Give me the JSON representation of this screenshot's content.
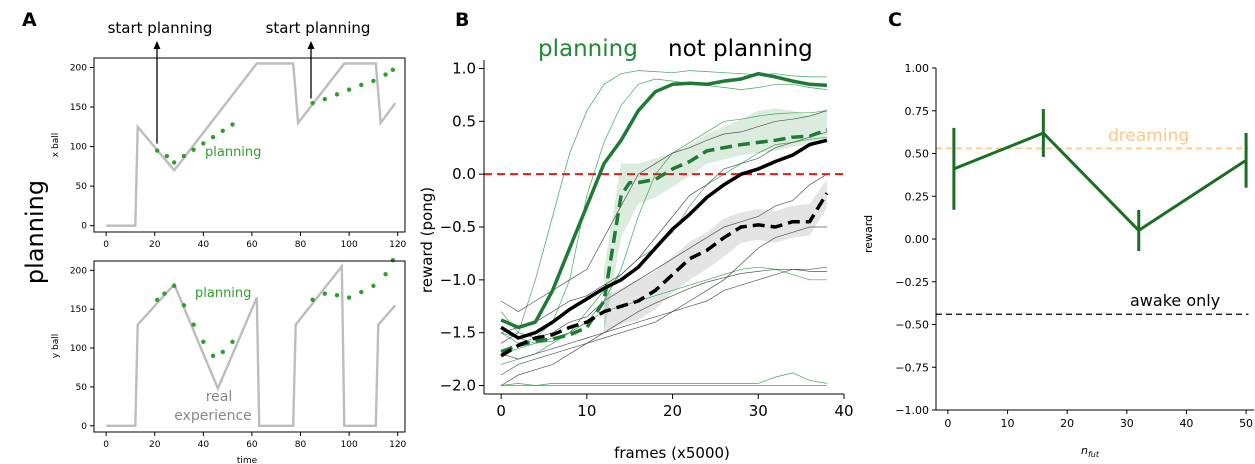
{
  "side_label": "planning",
  "chart_data": [
    {
      "id": "A-top",
      "panel_letter": "A",
      "type": "line",
      "ylabel": "x ball",
      "xlabel": "",
      "xlim": [
        -5,
        123
      ],
      "ylim": [
        -8,
        212
      ],
      "xticks": [
        0,
        20,
        40,
        60,
        80,
        100,
        120
      ],
      "yticks": [
        0,
        50,
        100,
        150,
        200
      ],
      "annotations": [
        "start planning",
        "start planning"
      ],
      "annotation_points": [
        [
          21,
          100
        ],
        [
          85,
          157
        ]
      ],
      "inline_label": "planning",
      "series": [
        {
          "name": "real",
          "color": "#bdbdbd",
          "x": [
            0,
            12,
            13,
            28,
            62,
            77,
            79,
            98,
            111,
            113,
            119
          ],
          "y": [
            0,
            0,
            125,
            70,
            205,
            205,
            130,
            205,
            205,
            130,
            155
          ]
        },
        {
          "name": "planning",
          "color": "#2ca02c",
          "x": [
            21,
            25,
            28,
            32,
            36,
            40,
            44,
            48,
            52
          ],
          "y": [
            95,
            88,
            80,
            88,
            96,
            104,
            112,
            120,
            128
          ]
        },
        {
          "name": "planning",
          "color": "#2ca02c",
          "x": [
            85,
            90,
            95,
            100,
            105,
            110,
            115,
            118
          ],
          "y": [
            155,
            160,
            166,
            172,
            178,
            183,
            191,
            197
          ]
        }
      ]
    },
    {
      "id": "A-bottom",
      "panel_letter": "",
      "type": "line",
      "ylabel": "y ball",
      "xlabel": "time",
      "xlim": [
        -5,
        123
      ],
      "ylim": [
        -8,
        212
      ],
      "xticks": [
        0,
        20,
        40,
        60,
        80,
        100,
        120
      ],
      "yticks": [
        0,
        50,
        100,
        150,
        200
      ],
      "inline_label": "planning",
      "inline_label2": [
        "real",
        "experience"
      ],
      "series": [
        {
          "name": "real",
          "color": "#bdbdbd",
          "x": [
            0,
            12,
            13,
            28,
            46,
            62,
            63,
            77,
            78,
            97,
            98,
            111,
            112,
            119
          ],
          "y": [
            0,
            0,
            130,
            182,
            48,
            165,
            0,
            0,
            130,
            205,
            0,
            0,
            130,
            155
          ]
        },
        {
          "name": "planning",
          "color": "#2ca02c",
          "x": [
            21,
            24,
            28,
            32,
            36,
            40,
            44,
            48,
            52
          ],
          "y": [
            162,
            170,
            180,
            155,
            130,
            108,
            90,
            95,
            108
          ]
        },
        {
          "name": "planning",
          "color": "#2ca02c",
          "x": [
            85,
            90,
            95,
            100,
            105,
            110,
            115,
            118
          ],
          "y": [
            162,
            170,
            168,
            165,
            172,
            180,
            195,
            213
          ]
        }
      ]
    },
    {
      "id": "B",
      "panel_letter": "B",
      "type": "line",
      "ylabel": "reward (pong)",
      "xlabel": "frames (x5000)",
      "xlim": [
        -2,
        40
      ],
      "ylim": [
        -2.08,
        1.08
      ],
      "xticks": [
        0,
        10,
        20,
        30,
        40
      ],
      "yticks": [
        -2.0,
        -1.5,
        -1.0,
        -0.5,
        0.0,
        0.5,
        1.0
      ],
      "legend": [
        "planning",
        "not planning"
      ],
      "legend_colors": [
        "#1e8a34",
        "#000000"
      ],
      "hline": {
        "y": 0.0,
        "color": "#e31a1c"
      },
      "series": [
        {
          "name": "planning",
          "color": "#1e7a34",
          "width": 3.5,
          "x": [
            0,
            2,
            4,
            6,
            8,
            10,
            12,
            14,
            16,
            18,
            20,
            22,
            24,
            26,
            28,
            30,
            32,
            34,
            36,
            38
          ],
          "y": [
            -1.38,
            -1.45,
            -1.4,
            -1.1,
            -0.7,
            -0.3,
            0.1,
            0.32,
            0.6,
            0.78,
            0.85,
            0.86,
            0.85,
            0.88,
            0.9,
            0.95,
            0.92,
            0.88,
            0.85,
            0.84
          ]
        },
        {
          "name": "planning",
          "color": "#1e7a34",
          "width": 3.5,
          "dash": true,
          "x": [
            0,
            2,
            4,
            6,
            8,
            10,
            12,
            13,
            14,
            15,
            16,
            18,
            20,
            22,
            24,
            26,
            28,
            30,
            32,
            34,
            36,
            38
          ],
          "y": [
            -1.68,
            -1.62,
            -1.58,
            -1.56,
            -1.52,
            -1.45,
            -1.2,
            -0.7,
            -0.2,
            -0.08,
            -0.08,
            -0.05,
            0.05,
            0.12,
            0.22,
            0.25,
            0.28,
            0.3,
            0.32,
            0.35,
            0.36,
            0.42
          ]
        },
        {
          "name": "not planning",
          "color": "#000000",
          "width": 3.5,
          "x": [
            0,
            2,
            4,
            6,
            8,
            10,
            12,
            14,
            16,
            18,
            20,
            22,
            24,
            26,
            28,
            30,
            32,
            34,
            36,
            38
          ],
          "y": [
            -1.45,
            -1.55,
            -1.5,
            -1.4,
            -1.28,
            -1.18,
            -1.08,
            -1.0,
            -0.88,
            -0.7,
            -0.52,
            -0.38,
            -0.22,
            -0.1,
            0.0,
            0.05,
            0.12,
            0.18,
            0.28,
            0.32
          ]
        },
        {
          "name": "not planning",
          "color": "#000000",
          "width": 3.5,
          "dash": true,
          "x": [
            0,
            2,
            4,
            6,
            8,
            10,
            12,
            14,
            16,
            18,
            20,
            22,
            24,
            26,
            28,
            30,
            32,
            34,
            36,
            38
          ],
          "y": [
            -1.72,
            -1.62,
            -1.55,
            -1.52,
            -1.45,
            -1.4,
            -1.3,
            -1.25,
            -1.2,
            -1.1,
            -0.95,
            -0.8,
            -0.72,
            -0.6,
            -0.5,
            -0.48,
            -0.5,
            -0.45,
            -0.45,
            -0.18
          ]
        }
      ],
      "bands": [
        {
          "color": "#1e8a34",
          "x": [
            12,
            14,
            16,
            18,
            20,
            22,
            24,
            26,
            28,
            30,
            32,
            34,
            36,
            38
          ],
          "lower": [
            -1.5,
            -0.6,
            -0.28,
            -0.22,
            -0.12,
            -0.02,
            0.1,
            0.14,
            0.18,
            0.2,
            0.22,
            0.26,
            0.28,
            0.32
          ],
          "upper": [
            -0.9,
            0.1,
            0.1,
            0.15,
            0.2,
            0.28,
            0.38,
            0.45,
            0.52,
            0.6,
            0.62,
            0.6,
            0.55,
            0.62
          ]
        },
        {
          "color": "#555555",
          "x": [
            12,
            14,
            16,
            18,
            20,
            22,
            24,
            26,
            28,
            30,
            32,
            34,
            36,
            38
          ],
          "lower": [
            -1.5,
            -1.42,
            -1.38,
            -1.28,
            -1.12,
            -1.0,
            -0.9,
            -0.78,
            -0.65,
            -0.62,
            -0.65,
            -0.6,
            -0.58,
            -0.32
          ],
          "upper": [
            -1.15,
            -1.08,
            -1.0,
            -0.92,
            -0.78,
            -0.64,
            -0.55,
            -0.42,
            -0.36,
            -0.33,
            -0.35,
            -0.3,
            -0.28,
            -0.05
          ]
        }
      ],
      "thin_lines": [
        {
          "color": "#2e9e48",
          "y": [
            -1.3,
            -1.5,
            -1.0,
            -0.4,
            0.2,
            0.6,
            0.85,
            0.95,
            0.98,
            0.97,
            0.96,
            0.98,
            0.97,
            0.96,
            0.95,
            0.94,
            0.95,
            0.93,
            0.92,
            0.92
          ]
        },
        {
          "color": "#2e9e48",
          "y": [
            -1.5,
            -1.6,
            -1.55,
            -1.4,
            -1.0,
            -0.2,
            0.3,
            0.65,
            0.85,
            0.9,
            0.88,
            0.86,
            0.84,
            0.82,
            0.8,
            0.82,
            0.85,
            0.85,
            0.82,
            0.8
          ]
        },
        {
          "color": "#2e9e48",
          "y": [
            -1.7,
            -1.65,
            -1.6,
            -1.55,
            -1.5,
            -1.4,
            -1.2,
            -0.9,
            -0.4,
            0.0,
            0.2,
            0.3,
            0.4,
            0.5,
            0.52,
            0.55,
            0.57,
            0.58,
            0.58,
            0.6
          ]
        },
        {
          "color": "#2e9e48",
          "y": [
            -1.5,
            -1.55,
            -1.6,
            -1.58,
            -1.5,
            -1.3,
            -1.1,
            -0.95,
            -0.8,
            -0.7,
            -0.55,
            -0.3,
            -0.1,
            0.0,
            0.1,
            0.2,
            0.28,
            0.3,
            0.33,
            0.35
          ]
        },
        {
          "color": "#2e9e48",
          "y": [
            -1.8,
            -1.75,
            -1.7,
            -1.6,
            -1.5,
            -1.4,
            -1.3,
            -1.25,
            -1.2,
            -1.15,
            -1.1,
            -1.05,
            -1.0,
            -0.95,
            -0.9,
            -0.88,
            -0.9,
            -0.95,
            -1.0,
            -1.0
          ]
        },
        {
          "color": "#2e9e48",
          "y": [
            -2.0,
            -2.0,
            -2.0,
            -2.0,
            -2.0,
            -2.0,
            -2.0,
            -2.0,
            -2.0,
            -2.0,
            -2.0,
            -2.0,
            -2.0,
            -2.0,
            -2.0,
            -2.0,
            -2.0,
            -2.0,
            -2.0,
            -2.0
          ]
        },
        {
          "color": "#2e9e48",
          "y": [
            -2.0,
            -1.98,
            -2.0,
            -1.98,
            -1.98,
            -1.98,
            -1.98,
            -1.98,
            -1.98,
            -1.98,
            -1.98,
            -1.98,
            -1.98,
            -1.98,
            -1.98,
            -1.98,
            -1.92,
            -1.88,
            -1.95,
            -1.98
          ]
        },
        {
          "color": "#444444",
          "y": [
            -1.2,
            -1.3,
            -1.2,
            -1.1,
            -1.0,
            -0.9,
            -0.6,
            -0.3,
            0.0,
            0.1,
            0.2,
            0.25,
            0.32,
            0.38,
            0.4,
            0.45,
            0.5,
            0.52,
            0.55,
            0.6
          ]
        },
        {
          "color": "#444444",
          "y": [
            -1.5,
            -1.45,
            -1.4,
            -1.3,
            -1.2,
            -1.15,
            -1.05,
            -0.95,
            -0.8,
            -0.6,
            -0.4,
            -0.2,
            -0.1,
            0.05,
            0.1,
            0.15,
            0.25,
            0.3,
            0.35,
            0.4
          ]
        },
        {
          "color": "#444444",
          "y": [
            -1.6,
            -1.5,
            -1.55,
            -1.5,
            -1.4,
            -1.35,
            -1.2,
            -1.1,
            -1.0,
            -0.9,
            -0.8,
            -0.7,
            -0.6,
            -0.5,
            -0.45,
            -0.4,
            -0.3,
            -0.25,
            -0.1,
            0.0
          ]
        },
        {
          "color": "#444444",
          "y": [
            -1.7,
            -1.75,
            -1.7,
            -1.65,
            -1.6,
            -1.55,
            -1.5,
            -1.45,
            -1.4,
            -1.35,
            -1.3,
            -1.25,
            -1.2,
            -1.1,
            -1.05,
            -1.0,
            -0.95,
            -0.9,
            -0.9,
            -0.88
          ]
        },
        {
          "color": "#444444",
          "y": [
            -1.9,
            -1.8,
            -1.75,
            -1.7,
            -1.65,
            -1.6,
            -1.55,
            -1.5,
            -1.45,
            -1.4,
            -1.3,
            -1.2,
            -1.1,
            -1.0,
            -0.85,
            -0.7,
            -0.6,
            -0.55,
            -0.5,
            -0.5
          ]
        },
        {
          "color": "#444444",
          "y": [
            -2.0,
            -1.9,
            -1.85,
            -1.8,
            -1.7,
            -1.6,
            -1.5,
            -1.4,
            -1.3,
            -1.22,
            -1.15,
            -1.08,
            -1.02,
            -0.98,
            -0.94,
            -0.92,
            -0.9,
            -0.9,
            -0.92,
            -0.92
          ]
        }
      ]
    },
    {
      "id": "C",
      "panel_letter": "C",
      "type": "line",
      "ylabel": "reward",
      "xlabel": "n",
      "xlabel_sub": "fut",
      "xlim": [
        -2,
        52
      ],
      "ylim": [
        -1.0,
        1.0
      ],
      "xticks": [
        0,
        10,
        20,
        30,
        40,
        50
      ],
      "yticks": [
        1.0,
        0.75,
        0.5,
        0.25,
        0.0,
        -0.25,
        -0.5,
        -0.75,
        -1.0
      ],
      "x": [
        1,
        16,
        32,
        50
      ],
      "y": [
        0.41,
        0.62,
        0.05,
        0.46
      ],
      "err": [
        0.24,
        0.14,
        0.12,
        0.16
      ],
      "color": "#1b6e23",
      "refs": [
        {
          "label": "dreaming",
          "y": 0.53,
          "color": "#fdc886"
        },
        {
          "label": "awake only",
          "y": -0.44,
          "color": "#000000"
        }
      ]
    }
  ]
}
